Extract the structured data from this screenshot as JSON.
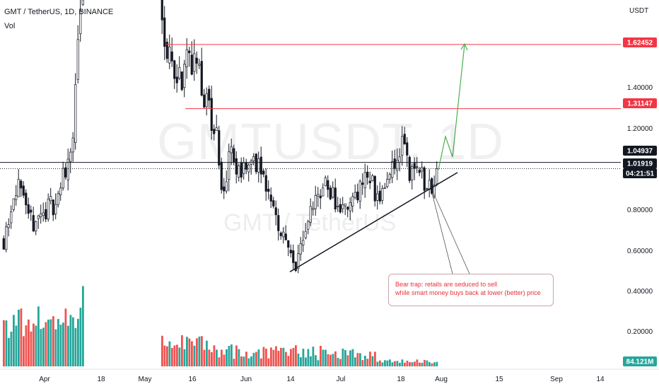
{
  "header": {
    "symbol_line": "GMT / TetherUS, 1D, BINANCE",
    "volume_label": "Vol",
    "currency": "USDT"
  },
  "watermark": {
    "ticker": "GMTUSDT, 1D",
    "pair": "GMT / TetherUS"
  },
  "annotation": {
    "line1": "Bear trap: retails are seduced to sell",
    "line2": "while smart money buys back at lower (better) price"
  },
  "colors": {
    "bull": "#26a69a",
    "bear": "#ef5350",
    "candle_body_up": "#ffffff",
    "candle_body_down": "#131722",
    "resistance": "#f23645",
    "projection": "#4caf50",
    "support": "#131722",
    "badge_dark": "#131722",
    "badge_volume": "#26a69a"
  },
  "chart_data": {
    "type": "candlestick",
    "title": "GMT / TetherUS, 1D, BINANCE",
    "x_ticks": [
      "Apr",
      "18",
      "May",
      "16",
      "Jun",
      "14",
      "Jul",
      "18",
      "Aug",
      "15",
      "Sep",
      "14"
    ],
    "y_ticks": [
      "1.40000",
      "1.20000",
      "0.80000",
      "0.60000",
      "0.40000",
      "0.20000"
    ],
    "ylim": [
      0.0,
      2.0
    ],
    "price_badges": [
      {
        "label": "1.62452",
        "value": 1.62452,
        "style": "red"
      },
      {
        "label": "1.31147",
        "value": 1.31147,
        "style": "red"
      },
      {
        "label": "1.04937",
        "value": 1.04937,
        "style": "dark"
      },
      {
        "label": "1.01919",
        "value": 1.01919,
        "style": "dark"
      },
      {
        "label": "04:21:51",
        "style": "dark"
      },
      {
        "label": "84.121M",
        "style": "volume"
      }
    ],
    "horizontal_levels": [
      1.62452,
      1.31147,
      1.04937
    ],
    "current_price": 1.01919,
    "support_trendline": {
      "from": [
        "Jun 17",
        0.53
      ],
      "to": [
        "Jul 31",
        0.99
      ]
    },
    "projection_path": [
      [
        "Jul 29",
        1.02
      ],
      [
        "Aug 01",
        1.15
      ],
      [
        "Aug 02",
        1.07
      ],
      [
        "Aug 09",
        1.62
      ]
    ],
    "grid": false,
    "volume_panel": true
  }
}
